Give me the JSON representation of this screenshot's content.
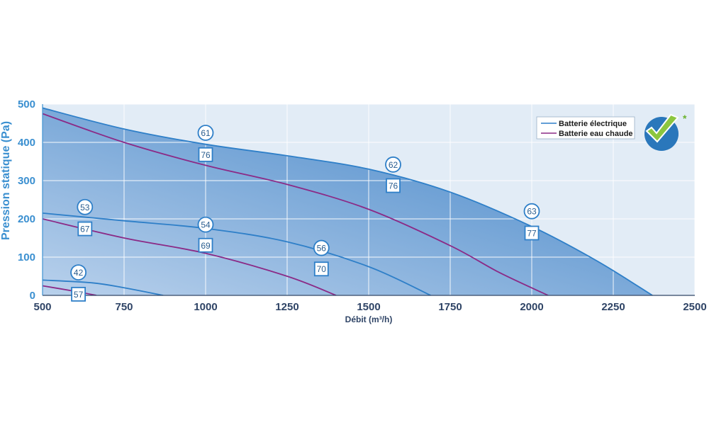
{
  "chart_data": {
    "type": "line",
    "title": "",
    "xlabel": "Débit (m³/h)",
    "ylabel": "Pression statique (Pa)",
    "xlim": [
      500,
      2500
    ],
    "ylim": [
      0,
      500
    ],
    "x_ticks": [
      "500",
      "750",
      "1000",
      "1250",
      "1500",
      "1750",
      "2000",
      "2250",
      "2500"
    ],
    "y_ticks": [
      "0",
      "100",
      "200",
      "300",
      "400",
      "500"
    ],
    "grid": true,
    "legend_position": "top-right",
    "colors": {
      "electric": "#2e7fc8",
      "water": "#8b2a86",
      "area_light": "#b3cdea",
      "area_dark": "#5b93cd",
      "grid": "#ffffff"
    },
    "series": [
      {
        "name": "Batterie électrique",
        "key": "electric",
        "x": [
          500,
          750,
          1000,
          1250,
          1500,
          1750,
          2000,
          2200,
          2370
        ],
        "y": [
          490,
          435,
          395,
          365,
          330,
          270,
          180,
          90,
          0
        ]
      },
      {
        "name": "Batterie eau chaude",
        "key": "water",
        "x": [
          500,
          750,
          1000,
          1250,
          1500,
          1750,
          1900,
          2050
        ],
        "y": [
          475,
          400,
          340,
          290,
          225,
          130,
          60,
          0
        ]
      },
      {
        "name": "",
        "key": "electric",
        "x": [
          500,
          750,
          1000,
          1250,
          1500,
          1690
        ],
        "y": [
          215,
          195,
          175,
          140,
          75,
          0
        ]
      },
      {
        "name": "",
        "key": "water",
        "x": [
          500,
          750,
          1000,
          1250,
          1400
        ],
        "y": [
          200,
          150,
          110,
          50,
          0
        ]
      },
      {
        "name": "",
        "key": "electric",
        "x": [
          500,
          650,
          750,
          870
        ],
        "y": [
          40,
          33,
          20,
          0
        ]
      },
      {
        "name": "",
        "key": "water",
        "x": [
          500,
          590,
          665
        ],
        "y": [
          25,
          12,
          0
        ]
      }
    ],
    "annotations": [
      {
        "shape": "circle",
        "text": "61",
        "x": 1000,
        "y": 425
      },
      {
        "shape": "square",
        "text": "76",
        "x": 1000,
        "y": 368
      },
      {
        "shape": "circle",
        "text": "62",
        "x": 1575,
        "y": 342
      },
      {
        "shape": "square",
        "text": "76",
        "x": 1575,
        "y": 287
      },
      {
        "shape": "circle",
        "text": "63",
        "x": 2000,
        "y": 220
      },
      {
        "shape": "square",
        "text": "77",
        "x": 2000,
        "y": 163
      },
      {
        "shape": "circle",
        "text": "53",
        "x": 630,
        "y": 231
      },
      {
        "shape": "square",
        "text": "67",
        "x": 630,
        "y": 174
      },
      {
        "shape": "circle",
        "text": "54",
        "x": 1000,
        "y": 185
      },
      {
        "shape": "square",
        "text": "69",
        "x": 1000,
        "y": 131
      },
      {
        "shape": "circle",
        "text": "56",
        "x": 1355,
        "y": 124
      },
      {
        "shape": "square",
        "text": "70",
        "x": 1355,
        "y": 69
      },
      {
        "shape": "circle",
        "text": "42",
        "x": 610,
        "y": 60
      },
      {
        "shape": "square",
        "text": "57",
        "x": 610,
        "y": 3
      }
    ],
    "logo": {
      "name": "certification-check-logo",
      "mark": "*"
    }
  }
}
